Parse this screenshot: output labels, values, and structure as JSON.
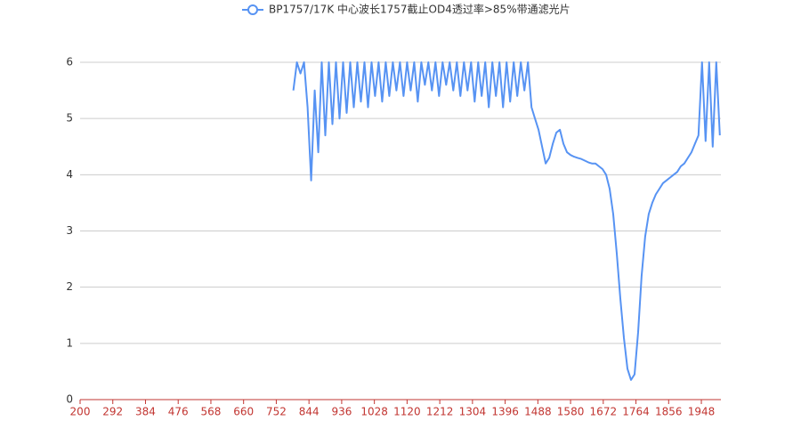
{
  "chart_data": {
    "type": "line",
    "x": [
      800,
      810,
      820,
      830,
      840,
      850,
      860,
      870,
      880,
      890,
      900,
      910,
      920,
      930,
      940,
      950,
      960,
      970,
      980,
      990,
      1000,
      1010,
      1020,
      1030,
      1040,
      1050,
      1060,
      1070,
      1080,
      1090,
      1100,
      1110,
      1120,
      1130,
      1140,
      1150,
      1160,
      1170,
      1180,
      1190,
      1200,
      1210,
      1220,
      1230,
      1240,
      1250,
      1260,
      1270,
      1280,
      1290,
      1300,
      1310,
      1320,
      1330,
      1340,
      1350,
      1360,
      1370,
      1380,
      1390,
      1400,
      1410,
      1420,
      1430,
      1440,
      1450,
      1460,
      1470,
      1480,
      1490,
      1500,
      1510,
      1520,
      1530,
      1540,
      1550,
      1560,
      1570,
      1580,
      1590,
      1600,
      1610,
      1620,
      1630,
      1640,
      1650,
      1660,
      1670,
      1680,
      1690,
      1700,
      1710,
      1720,
      1730,
      1740,
      1750,
      1760,
      1770,
      1780,
      1790,
      1800,
      1810,
      1820,
      1830,
      1840,
      1850,
      1860,
      1870,
      1880,
      1890,
      1900,
      1910,
      1920,
      1930,
      1940,
      1950,
      1960,
      1970,
      1980,
      1990,
      2000
    ],
    "series": [
      {
        "name": "BP1757/17K 中心波长1757截止OD4透过率>85%带通滤光片",
        "color": "#5793f3",
        "values": [
          5.5,
          6,
          5.8,
          6,
          5.2,
          3.9,
          5.5,
          4.4,
          6,
          4.7,
          6,
          4.9,
          6,
          5.0,
          6,
          5.1,
          6,
          5.2,
          6,
          5.3,
          6,
          5.2,
          6,
          5.4,
          6,
          5.3,
          6,
          5.4,
          6,
          5.5,
          6,
          5.4,
          6,
          5.5,
          6,
          5.3,
          6,
          5.6,
          6,
          5.5,
          6,
          5.4,
          6,
          5.6,
          6,
          5.5,
          6,
          5.4,
          6,
          5.5,
          6,
          5.3,
          6,
          5.4,
          6,
          5.2,
          6,
          5.4,
          6,
          5.2,
          6,
          5.3,
          6,
          5.4,
          6,
          5.5,
          6,
          5.2,
          5.0,
          4.8,
          4.5,
          4.2,
          4.3,
          4.55,
          4.75,
          4.8,
          4.55,
          4.4,
          4.35,
          4.32,
          4.3,
          4.28,
          4.25,
          4.22,
          4.2,
          4.2,
          4.15,
          4.1,
          4.0,
          3.75,
          3.3,
          2.6,
          1.8,
          1.1,
          0.55,
          0.35,
          0.45,
          1.2,
          2.2,
          2.9,
          3.3,
          3.5,
          3.65,
          3.75,
          3.85,
          3.9,
          3.95,
          4.0,
          4.05,
          4.15,
          4.2,
          4.3,
          4.4,
          4.55,
          4.7,
          6,
          4.6,
          6,
          4.5,
          6,
          4.7
        ]
      }
    ],
    "xlim": [
      200,
      2003
    ],
    "xticks": [
      200,
      292,
      384,
      476,
      568,
      660,
      752,
      844,
      936,
      1028,
      1120,
      1212,
      1304,
      1396,
      1488,
      1580,
      1672,
      1764,
      1856,
      1948
    ],
    "ylim": [
      0,
      6
    ],
    "yticks": [
      0,
      1,
      2,
      3,
      4,
      5,
      6
    ],
    "grid": true,
    "legend": "top"
  }
}
